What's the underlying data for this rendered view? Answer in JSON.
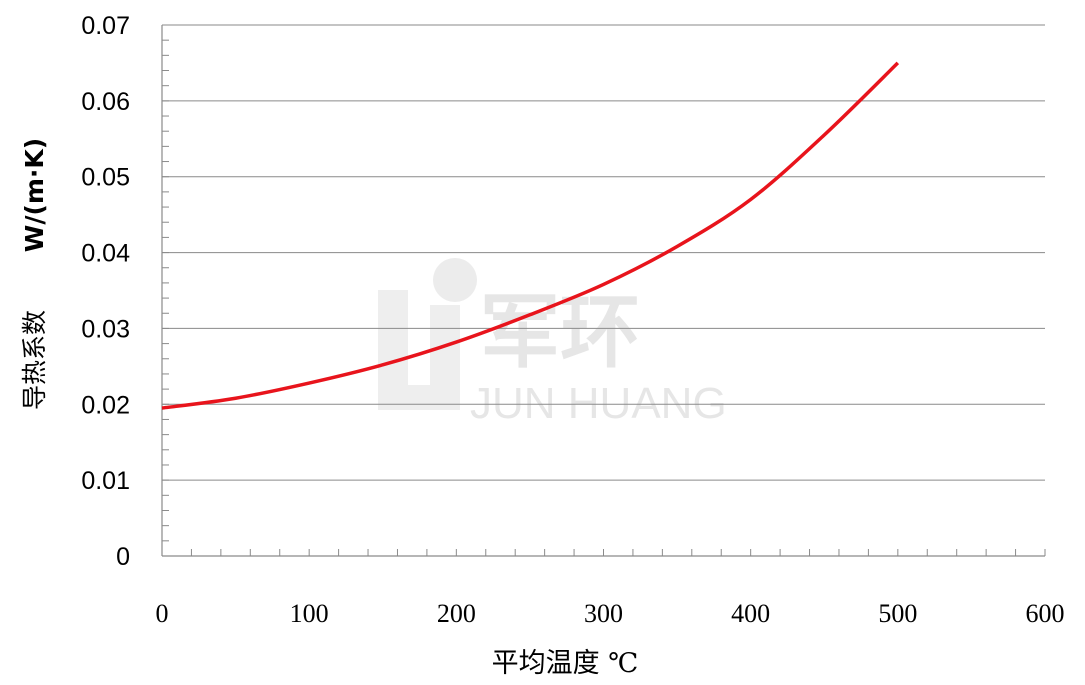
{
  "chart_data": {
    "type": "line",
    "title": "",
    "xlabel": "平均温度 ℃",
    "ylabel_name": "导热系数",
    "ylabel_unit": "W/(m·K)",
    "xlim": [
      0,
      600
    ],
    "ylim": [
      0,
      0.07
    ],
    "x_ticks": [
      "0",
      "100",
      "200",
      "300",
      "400",
      "500",
      "600"
    ],
    "y_ticks": [
      "0",
      "0.01",
      "0.02",
      "0.03",
      "0.04",
      "0.05",
      "0.06",
      "0.07"
    ],
    "grid": "horizontal",
    "series": [
      {
        "color": "#e8141c",
        "x": [
          0,
          50,
          100,
          150,
          200,
          250,
          300,
          350,
          400,
          450,
          500
        ],
        "y": [
          0.0195,
          0.0208,
          0.0228,
          0.0252,
          0.0282,
          0.0318,
          0.0358,
          0.0408,
          0.047,
          0.0555,
          0.065
        ]
      }
    ],
    "watermark": "JUN HUANG 军环"
  }
}
